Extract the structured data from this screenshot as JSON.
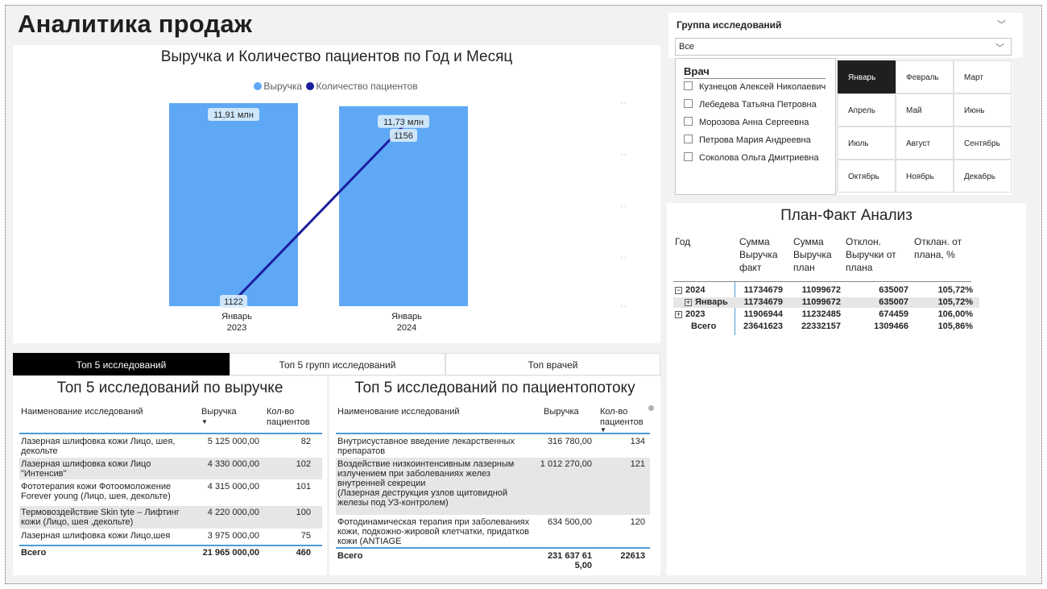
{
  "page": {
    "title": "Аналитика продаж"
  },
  "chart": {
    "title": "Выручка и Количество пациентов по Год и Месяц",
    "legend": [
      {
        "label": "Выручка",
        "color": "#5ea8f5"
      },
      {
        "label": "Количество пациентов",
        "color": "#1a1e9c"
      }
    ]
  },
  "chart_data": {
    "type": "bar",
    "title": "Выручка и Количество пациентов по Год и Месяц",
    "categories": [
      [
        "Январь",
        "2023"
      ],
      [
        "Январь",
        "2024"
      ]
    ],
    "series": [
      {
        "name": "Выручка",
        "type": "bar",
        "values": [
          11.91,
          11.73
        ],
        "labels": [
          "11,91 млн",
          "11,73 млн"
        ],
        "color": "#5ea8f5"
      },
      {
        "name": "Количество пациентов",
        "type": "line",
        "values": [
          1122,
          1156
        ],
        "labels": [
          "1122",
          "1156"
        ],
        "color": "#1a1e9c"
      }
    ]
  },
  "tabs": [
    {
      "label": "Топ 5 исследований",
      "active": true
    },
    {
      "label": "Топ 5 групп исследований",
      "active": false
    },
    {
      "label": "Топ врачей",
      "active": false
    }
  ],
  "table_revenue": {
    "title": "Топ 5 исследований по выручке",
    "headers": {
      "name": "Наименование исследований",
      "revenue": "Выручка",
      "patients": "Кол-во пациентов"
    },
    "rows": [
      {
        "name": "Лазерная шлифовка кожи Лицо, шея, декольте",
        "revenue": "5 125 000,00",
        "patients": "82"
      },
      {
        "name": "Лазерная шлифовка кожи Лицо \"Интенсив\"",
        "revenue": "4 330 000,00",
        "patients": "102"
      },
      {
        "name": "Фототерапия кожи Фотоомоложение Forever young (Лицо, шея, декольте)",
        "revenue": "4 315 000,00",
        "patients": "101"
      },
      {
        "name": "Термовоздействие Skin tyte – Лифтинг кожи (Лицо, шея ,декольте)",
        "revenue": "4 220 000,00",
        "patients": "100"
      },
      {
        "name": "Лазерная шлифовка кожи Лицо,шея",
        "revenue": "3 975 000,00",
        "patients": "75"
      }
    ],
    "total": {
      "label": "Всего",
      "revenue": "21 965 000,00",
      "patients": "460"
    }
  },
  "table_flow": {
    "title": "Топ 5 исследований по пациентопотоку",
    "headers": {
      "name": "Наименование исследований",
      "revenue": "Выручка",
      "patients": "Кол-во пациентов"
    },
    "rows": [
      {
        "name": "Внутрисуставное введение лекарственных препаратов",
        "revenue": "316 780,00",
        "patients": "134"
      },
      {
        "name": "Воздействие низкоинтенсивным лазерным излучением при заболеваниях желез внутренней секреции\n(Лазерная деструкция узлов щитовидной железы под УЗ-контролем)",
        "revenue": "1 012 270,00",
        "patients": "121"
      },
      {
        "name": "Фотодинамическая терапия при заболеваниях кожи, подкожно-жировой клетчатки, придатков кожи (ANTIAGE",
        "revenue": "634 500,00",
        "patients": "120"
      }
    ],
    "total": {
      "label": "Всего",
      "revenue": "231 637 61\n5,00",
      "patients": "22613"
    }
  },
  "slicer_group": {
    "title": "Группа исследований",
    "value": "Все"
  },
  "slicer_doctor": {
    "title": "Врач",
    "items": [
      "Кузнецов Алексей Николаевич",
      "Лебедева Татьяна Петровна",
      "Морозова Анна Сергеевна",
      "Петрова Мария Андреевна",
      "Соколова Ольга Дмитриевна"
    ]
  },
  "months": {
    "selected": "Январь",
    "items": [
      "Январь",
      "Февраль",
      "Март",
      "Апрель",
      "Май",
      "Июнь",
      "Июль",
      "Август",
      "Сентябрь",
      "Октябрь",
      "Ноябрь",
      "Декабрь"
    ]
  },
  "plan_fact": {
    "title": "План-Факт Анализ",
    "headers": {
      "year": "Год",
      "fact": "Сумма Выручка факт",
      "plan": "Сумма Выручка план",
      "dev": "Отклон. Выручки от плана",
      "pct": "Отклан. от плана, %"
    },
    "rows": [
      {
        "label": "2024",
        "toggle": "−",
        "fact": "11734679",
        "plan": "11099672",
        "dev": "635007",
        "pct": "105,72%"
      },
      {
        "label": "Январь",
        "toggle": "+",
        "fact": "11734679",
        "plan": "11099672",
        "dev": "635007",
        "pct": "105,72%"
      },
      {
        "label": "2023",
        "toggle": "+",
        "fact": "11906944",
        "plan": "11232485",
        "dev": "674459",
        "pct": "106,00%"
      },
      {
        "label": "Всего",
        "toggle": "",
        "fact": "23641623",
        "plan": "22332157",
        "dev": "1309466",
        "pct": "105,86%"
      }
    ]
  }
}
